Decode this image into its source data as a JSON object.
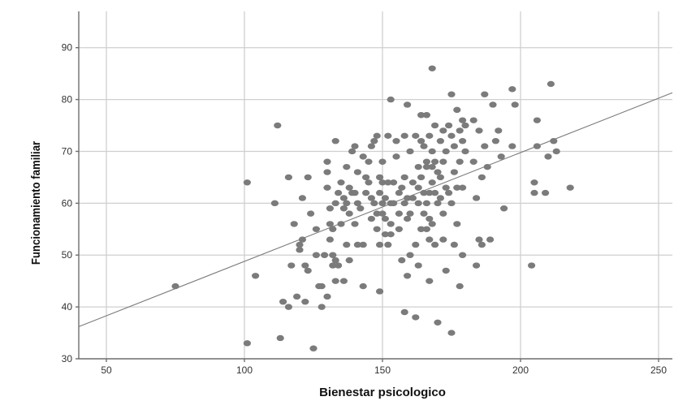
{
  "chart_data": {
    "type": "scatter",
    "xlabel": "Bienestar psicologico",
    "ylabel": "Funcionamiento familiar",
    "xlim": [
      40,
      255
    ],
    "ylim": [
      30,
      97
    ],
    "x_ticks": [
      50,
      100,
      150,
      200,
      250
    ],
    "y_ticks": [
      30,
      40,
      50,
      60,
      70,
      80,
      90
    ],
    "grid": true,
    "marker_color": "#7b7b7b",
    "line_color": "#7a7a7a",
    "fit_line": {
      "x": [
        40,
        255
      ],
      "y": [
        36.2,
        81.3
      ]
    },
    "series": [
      {
        "points": [
          [
            75,
            44
          ],
          [
            101,
            64
          ],
          [
            101,
            33
          ],
          [
            104,
            46
          ],
          [
            111,
            60
          ],
          [
            112,
            75
          ],
          [
            113,
            34
          ],
          [
            114,
            41
          ],
          [
            116,
            40
          ],
          [
            116,
            65
          ],
          [
            117,
            48
          ],
          [
            118,
            56
          ],
          [
            119,
            42
          ],
          [
            120,
            52
          ],
          [
            120,
            51
          ],
          [
            121,
            53
          ],
          [
            121,
            61
          ],
          [
            122,
            48
          ],
          [
            122,
            41
          ],
          [
            123,
            47
          ],
          [
            123,
            65
          ],
          [
            124,
            58
          ],
          [
            125,
            32
          ],
          [
            126,
            50
          ],
          [
            126,
            55
          ],
          [
            127,
            44
          ],
          [
            128,
            40
          ],
          [
            128,
            44
          ],
          [
            129,
            50
          ],
          [
            130,
            63
          ],
          [
            130,
            68
          ],
          [
            130,
            42
          ],
          [
            130,
            66
          ],
          [
            131,
            53
          ],
          [
            131,
            56
          ],
          [
            131,
            59
          ],
          [
            132,
            48
          ],
          [
            132,
            50
          ],
          [
            132,
            55
          ],
          [
            133,
            45
          ],
          [
            133,
            60
          ],
          [
            133,
            72
          ],
          [
            133,
            49
          ],
          [
            134,
            48
          ],
          [
            134,
            62
          ],
          [
            135,
            56
          ],
          [
            135,
            64
          ],
          [
            136,
            45
          ],
          [
            136,
            59
          ],
          [
            136,
            61
          ],
          [
            137,
            52
          ],
          [
            137,
            67
          ],
          [
            137,
            60
          ],
          [
            138,
            58
          ],
          [
            138,
            49
          ],
          [
            138,
            63
          ],
          [
            139,
            62
          ],
          [
            139,
            70
          ],
          [
            140,
            71
          ],
          [
            140,
            56
          ],
          [
            140,
            62
          ],
          [
            141,
            66
          ],
          [
            141,
            60
          ],
          [
            141,
            52
          ],
          [
            142,
            59
          ],
          [
            143,
            52
          ],
          [
            143,
            44
          ],
          [
            143,
            69
          ],
          [
            144,
            62
          ],
          [
            144,
            65
          ],
          [
            145,
            68
          ],
          [
            145,
            64
          ],
          [
            146,
            57
          ],
          [
            146,
            71
          ],
          [
            146,
            61
          ],
          [
            147,
            72
          ],
          [
            147,
            60
          ],
          [
            148,
            73
          ],
          [
            148,
            55
          ],
          [
            148,
            58
          ],
          [
            149,
            65
          ],
          [
            149,
            62
          ],
          [
            149,
            52
          ],
          [
            149,
            43
          ],
          [
            150,
            64
          ],
          [
            150,
            68
          ],
          [
            150,
            58
          ],
          [
            150,
            60
          ],
          [
            151,
            54
          ],
          [
            151,
            57
          ],
          [
            151,
            61
          ],
          [
            152,
            64
          ],
          [
            152,
            52
          ],
          [
            152,
            73
          ],
          [
            153,
            80
          ],
          [
            153,
            60
          ],
          [
            153,
            56
          ],
          [
            153,
            54
          ],
          [
            154,
            64
          ],
          [
            154,
            60
          ],
          [
            155,
            72
          ],
          [
            155,
            69
          ],
          [
            156,
            62
          ],
          [
            156,
            58
          ],
          [
            156,
            55
          ],
          [
            157,
            63
          ],
          [
            157,
            49
          ],
          [
            158,
            65
          ],
          [
            158,
            60
          ],
          [
            158,
            73
          ],
          [
            158,
            39
          ],
          [
            159,
            79
          ],
          [
            159,
            61
          ],
          [
            159,
            57
          ],
          [
            159,
            46
          ],
          [
            160,
            50
          ],
          [
            160,
            70
          ],
          [
            160,
            58
          ],
          [
            161,
            61
          ],
          [
            161,
            64
          ],
          [
            162,
            73
          ],
          [
            162,
            38
          ],
          [
            162,
            52
          ],
          [
            163,
            67
          ],
          [
            163,
            63
          ],
          [
            163,
            60
          ],
          [
            163,
            48
          ],
          [
            164,
            77
          ],
          [
            164,
            72
          ],
          [
            164,
            65
          ],
          [
            164,
            55
          ],
          [
            165,
            71
          ],
          [
            165,
            62
          ],
          [
            165,
            58
          ],
          [
            166,
            77
          ],
          [
            166,
            68
          ],
          [
            166,
            60
          ],
          [
            166,
            55
          ],
          [
            166,
            67
          ],
          [
            167,
            73
          ],
          [
            167,
            62
          ],
          [
            167,
            57
          ],
          [
            167,
            53
          ],
          [
            167,
            45
          ],
          [
            168,
            86
          ],
          [
            168,
            70
          ],
          [
            168,
            67
          ],
          [
            168,
            64
          ],
          [
            168,
            56
          ],
          [
            169,
            75
          ],
          [
            169,
            68
          ],
          [
            169,
            62
          ],
          [
            169,
            52
          ],
          [
            170,
            66
          ],
          [
            170,
            60
          ],
          [
            170,
            37
          ],
          [
            171,
            72
          ],
          [
            171,
            61
          ],
          [
            171,
            65
          ],
          [
            172,
            74
          ],
          [
            172,
            68
          ],
          [
            172,
            58
          ],
          [
            172,
            53
          ],
          [
            173,
            70
          ],
          [
            173,
            63
          ],
          [
            173,
            47
          ],
          [
            174,
            75
          ],
          [
            174,
            62
          ],
          [
            175,
            81
          ],
          [
            175,
            73
          ],
          [
            175,
            60
          ],
          [
            175,
            35
          ],
          [
            176,
            71
          ],
          [
            176,
            66
          ],
          [
            176,
            52
          ],
          [
            177,
            78
          ],
          [
            177,
            63
          ],
          [
            177,
            56
          ],
          [
            178,
            74
          ],
          [
            178,
            68
          ],
          [
            178,
            44
          ],
          [
            179,
            76
          ],
          [
            179,
            72
          ],
          [
            179,
            63
          ],
          [
            179,
            50
          ],
          [
            180,
            75
          ],
          [
            180,
            70
          ],
          [
            183,
            76
          ],
          [
            183,
            68
          ],
          [
            184,
            61
          ],
          [
            184,
            48
          ],
          [
            185,
            74
          ],
          [
            185,
            53
          ],
          [
            186,
            65
          ],
          [
            186,
            52
          ],
          [
            187,
            81
          ],
          [
            187,
            71
          ],
          [
            188,
            67
          ],
          [
            189,
            53
          ],
          [
            190,
            79
          ],
          [
            191,
            72
          ],
          [
            192,
            74
          ],
          [
            193,
            69
          ],
          [
            194,
            59
          ],
          [
            197,
            82
          ],
          [
            197,
            71
          ],
          [
            198,
            79
          ],
          [
            204,
            48
          ],
          [
            205,
            64
          ],
          [
            205,
            62
          ],
          [
            206,
            76
          ],
          [
            206,
            71
          ],
          [
            209,
            62
          ],
          [
            210,
            69
          ],
          [
            211,
            83
          ],
          [
            212,
            72
          ],
          [
            213,
            70
          ],
          [
            218,
            63
          ]
        ]
      }
    ]
  }
}
